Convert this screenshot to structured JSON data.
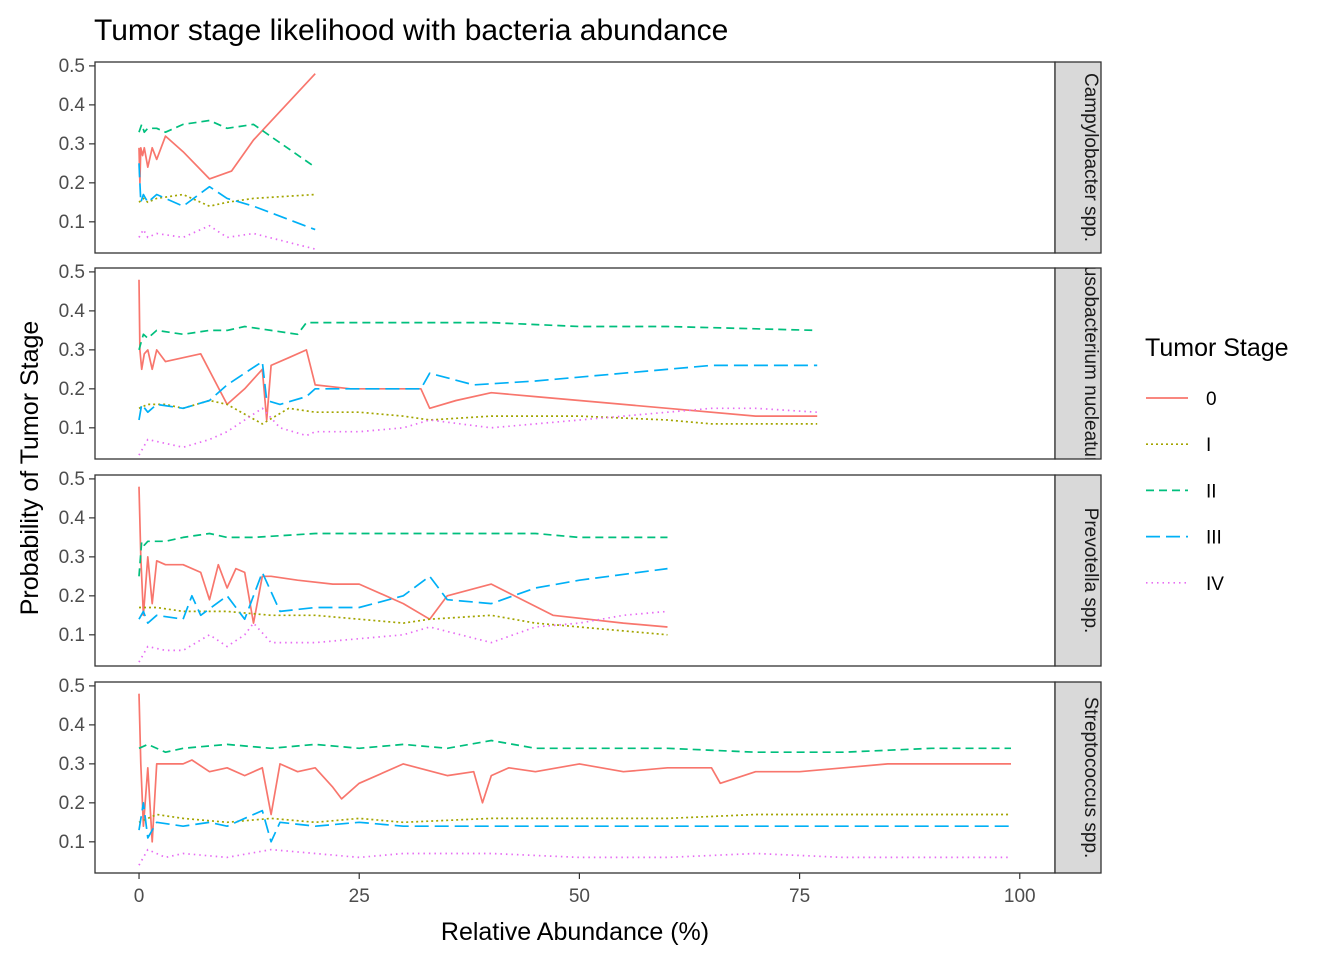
{
  "chart_data": {
    "type": "line",
    "title": "Tumor stage likelihood with bacteria abundance",
    "xlabel": "Relative Abundance (%)",
    "ylabel": "Probability of Tumor Stage",
    "xlim": [
      -5,
      104
    ],
    "ylim": [
      0.02,
      0.51
    ],
    "x_ticks": [
      0,
      25,
      50,
      75,
      100
    ],
    "y_ticks": [
      0.1,
      0.2,
      0.3,
      0.4,
      0.5
    ],
    "grid": false,
    "legend": {
      "title": "Tumor Stage",
      "position": "right",
      "entries": [
        "0",
        "I",
        "II",
        "III",
        "IV"
      ]
    },
    "series_styles": [
      {
        "name": "0",
        "color": "#F8766D",
        "dash": "solid"
      },
      {
        "name": "I",
        "color": "#A3A500",
        "dash": "dotted-dash"
      },
      {
        "name": "II",
        "color": "#00BF7D",
        "dash": "dashed"
      },
      {
        "name": "III",
        "color": "#00B0F6",
        "dash": "long-dash"
      },
      {
        "name": "IV",
        "color": "#E76BF3",
        "dash": "dotted"
      }
    ],
    "facets": [
      {
        "label": "Campylobacter spp.",
        "series": [
          {
            "name": "0",
            "x": [
              0,
              0.1,
              0.2,
              0.4,
              0.6,
              1,
              1.5,
              2,
              3,
              5,
              8,
              10.5,
              13,
              20
            ],
            "y": [
              0.29,
              0.2,
              0.29,
              0.27,
              0.29,
              0.24,
              0.29,
              0.26,
              0.32,
              0.28,
              0.21,
              0.23,
              0.31,
              0.48
            ]
          },
          {
            "name": "I",
            "x": [
              0,
              0.5,
              1,
              2,
              5,
              8,
              10,
              13,
              20
            ],
            "y": [
              0.15,
              0.16,
              0.15,
              0.16,
              0.17,
              0.14,
              0.15,
              0.16,
              0.17
            ]
          },
          {
            "name": "II",
            "x": [
              0,
              0.3,
              0.6,
              1,
              2,
              3,
              5,
              8,
              10,
              13,
              20
            ],
            "y": [
              0.33,
              0.35,
              0.33,
              0.34,
              0.34,
              0.33,
              0.35,
              0.36,
              0.34,
              0.35,
              0.24
            ]
          },
          {
            "name": "III",
            "x": [
              0,
              0.2,
              0.5,
              1,
              2,
              5,
              8,
              10,
              13,
              20
            ],
            "y": [
              0.25,
              0.15,
              0.17,
              0.15,
              0.17,
              0.14,
              0.19,
              0.16,
              0.14,
              0.08
            ]
          },
          {
            "name": "IV",
            "x": [
              0,
              0.5,
              1,
              2,
              5,
              8,
              10,
              13,
              20
            ],
            "y": [
              0.06,
              0.08,
              0.06,
              0.07,
              0.06,
              0.09,
              0.06,
              0.07,
              0.03
            ]
          }
        ]
      },
      {
        "label": "Fusobacterium nucleatum",
        "series": [
          {
            "name": "0",
            "x": [
              0,
              0.1,
              0.3,
              0.6,
              1,
              1.5,
              2,
              3,
              5,
              7,
              10,
              12,
              14,
              14.5,
              15,
              17,
              19,
              20,
              24,
              28,
              32,
              33,
              36,
              40,
              45,
              50,
              60,
              70,
              77
            ],
            "y": [
              0.48,
              0.3,
              0.25,
              0.29,
              0.3,
              0.25,
              0.3,
              0.27,
              0.28,
              0.29,
              0.16,
              0.2,
              0.25,
              0.12,
              0.26,
              0.28,
              0.3,
              0.21,
              0.2,
              0.2,
              0.2,
              0.15,
              0.17,
              0.19,
              0.18,
              0.17,
              0.15,
              0.13,
              0.13
            ]
          },
          {
            "name": "I",
            "x": [
              0,
              1,
              3,
              5,
              8,
              10,
              14,
              17,
              20,
              25,
              30,
              33,
              40,
              50,
              60,
              65,
              77
            ],
            "y": [
              0.15,
              0.16,
              0.16,
              0.15,
              0.17,
              0.16,
              0.11,
              0.15,
              0.14,
              0.14,
              0.13,
              0.12,
              0.13,
              0.13,
              0.12,
              0.11,
              0.11
            ]
          },
          {
            "name": "II",
            "x": [
              0,
              0.5,
              1,
              2,
              5,
              8,
              10,
              12,
              15,
              18,
              19,
              22,
              30,
              40,
              50,
              60,
              77
            ],
            "y": [
              0.3,
              0.34,
              0.33,
              0.35,
              0.34,
              0.35,
              0.35,
              0.36,
              0.35,
              0.34,
              0.37,
              0.37,
              0.37,
              0.37,
              0.36,
              0.36,
              0.35
            ]
          },
          {
            "name": "III",
            "x": [
              0,
              0.3,
              1,
              2,
              5,
              8,
              10,
              12,
              14,
              14.5,
              16,
              19,
              20,
              25,
              32,
              33,
              38,
              45,
              55,
              65,
              77
            ],
            "y": [
              0.12,
              0.16,
              0.14,
              0.16,
              0.15,
              0.17,
              0.21,
              0.24,
              0.27,
              0.17,
              0.16,
              0.18,
              0.2,
              0.2,
              0.2,
              0.24,
              0.21,
              0.22,
              0.24,
              0.26,
              0.26
            ]
          },
          {
            "name": "IV",
            "x": [
              0,
              1,
              3,
              5,
              8,
              10,
              12,
              14,
              16,
              19,
              20,
              25,
              30,
              33,
              40,
              50,
              60,
              65,
              70,
              77
            ],
            "y": [
              0.03,
              0.07,
              0.06,
              0.05,
              0.07,
              0.09,
              0.12,
              0.15,
              0.1,
              0.08,
              0.09,
              0.09,
              0.1,
              0.12,
              0.1,
              0.12,
              0.14,
              0.15,
              0.15,
              0.14
            ]
          }
        ]
      },
      {
        "label": "Prevotella spp.",
        "series": [
          {
            "name": "0",
            "x": [
              0,
              0.2,
              0.5,
              1,
              1.5,
              2,
              3,
              5,
              7,
              8,
              9,
              10,
              11,
              12,
              13,
              14,
              15,
              18,
              22,
              25,
              30,
              33,
              35,
              40,
              47,
              55,
              60
            ],
            "y": [
              0.48,
              0.3,
              0.15,
              0.3,
              0.18,
              0.29,
              0.28,
              0.28,
              0.26,
              0.19,
              0.28,
              0.22,
              0.27,
              0.26,
              0.13,
              0.25,
              0.25,
              0.24,
              0.23,
              0.23,
              0.18,
              0.14,
              0.2,
              0.23,
              0.15,
              0.13,
              0.12
            ]
          },
          {
            "name": "I",
            "x": [
              0,
              2,
              5,
              10,
              15,
              20,
              25,
              30,
              33,
              40,
              45,
              50,
              55,
              60
            ],
            "y": [
              0.17,
              0.17,
              0.16,
              0.16,
              0.15,
              0.15,
              0.14,
              0.13,
              0.14,
              0.15,
              0.13,
              0.12,
              0.11,
              0.1
            ]
          },
          {
            "name": "II",
            "x": [
              0,
              0.3,
              0.6,
              1,
              3,
              5,
              8,
              10,
              13,
              20,
              30,
              40,
              45,
              50,
              60
            ],
            "y": [
              0.25,
              0.34,
              0.33,
              0.34,
              0.34,
              0.35,
              0.36,
              0.35,
              0.35,
              0.36,
              0.36,
              0.36,
              0.36,
              0.35,
              0.35
            ]
          },
          {
            "name": "III",
            "x": [
              0,
              0.5,
              1,
              2,
              5,
              6,
              7,
              10,
              12,
              14,
              16,
              20,
              25,
              30,
              33,
              35,
              40,
              45,
              50,
              60
            ],
            "y": [
              0.14,
              0.16,
              0.13,
              0.15,
              0.14,
              0.2,
              0.15,
              0.2,
              0.14,
              0.26,
              0.16,
              0.17,
              0.17,
              0.2,
              0.25,
              0.19,
              0.18,
              0.22,
              0.24,
              0.27
            ]
          },
          {
            "name": "IV",
            "x": [
              0,
              1,
              3,
              5,
              8,
              10,
              12,
              13,
              15,
              20,
              25,
              30,
              33,
              40,
              45,
              50,
              55,
              60
            ],
            "y": [
              0.03,
              0.07,
              0.06,
              0.06,
              0.1,
              0.07,
              0.1,
              0.13,
              0.08,
              0.08,
              0.09,
              0.1,
              0.12,
              0.08,
              0.12,
              0.13,
              0.15,
              0.16
            ]
          }
        ]
      },
      {
        "label": "Streptococcus spp.",
        "series": [
          {
            "name": "0",
            "x": [
              0,
              0.2,
              0.5,
              1,
              1.5,
              2,
              3,
              5,
              6,
              8,
              10,
              12,
              14,
              15,
              16,
              18,
              20,
              22,
              23,
              25,
              30,
              35,
              38,
              39,
              40,
              42,
              45,
              50,
              55,
              60,
              65,
              66,
              70,
              75,
              80,
              85,
              90,
              99
            ],
            "y": [
              0.48,
              0.3,
              0.14,
              0.29,
              0.1,
              0.3,
              0.3,
              0.3,
              0.31,
              0.28,
              0.29,
              0.27,
              0.29,
              0.17,
              0.3,
              0.28,
              0.29,
              0.24,
              0.21,
              0.25,
              0.3,
              0.27,
              0.28,
              0.2,
              0.27,
              0.29,
              0.28,
              0.3,
              0.28,
              0.29,
              0.29,
              0.25,
              0.28,
              0.28,
              0.29,
              0.3,
              0.3,
              0.3
            ]
          },
          {
            "name": "I",
            "x": [
              0,
              2,
              5,
              10,
              15,
              20,
              25,
              30,
              40,
              50,
              60,
              70,
              80,
              90,
              99
            ],
            "y": [
              0.15,
              0.17,
              0.16,
              0.15,
              0.16,
              0.15,
              0.16,
              0.15,
              0.16,
              0.16,
              0.16,
              0.17,
              0.17,
              0.17,
              0.17
            ]
          },
          {
            "name": "II",
            "x": [
              0,
              1,
              3,
              5,
              10,
              15,
              20,
              25,
              30,
              35,
              40,
              45,
              50,
              60,
              70,
              80,
              90,
              99
            ],
            "y": [
              0.34,
              0.35,
              0.33,
              0.34,
              0.35,
              0.34,
              0.35,
              0.34,
              0.35,
              0.34,
              0.36,
              0.34,
              0.34,
              0.34,
              0.33,
              0.33,
              0.34,
              0.34
            ]
          },
          {
            "name": "III",
            "x": [
              0,
              0.5,
              1,
              2,
              5,
              8,
              10,
              14,
              15,
              16,
              20,
              25,
              30,
              40,
              50,
              60,
              70,
              80,
              99
            ],
            "y": [
              0.13,
              0.2,
              0.11,
              0.15,
              0.14,
              0.15,
              0.14,
              0.18,
              0.1,
              0.15,
              0.14,
              0.15,
              0.14,
              0.14,
              0.14,
              0.14,
              0.14,
              0.14,
              0.14
            ]
          },
          {
            "name": "IV",
            "x": [
              0,
              1,
              3,
              5,
              10,
              15,
              20,
              25,
              30,
              40,
              50,
              60,
              70,
              80,
              99
            ],
            "y": [
              0.04,
              0.08,
              0.06,
              0.07,
              0.06,
              0.08,
              0.07,
              0.06,
              0.07,
              0.07,
              0.06,
              0.06,
              0.07,
              0.06,
              0.06
            ]
          }
        ]
      }
    ]
  }
}
